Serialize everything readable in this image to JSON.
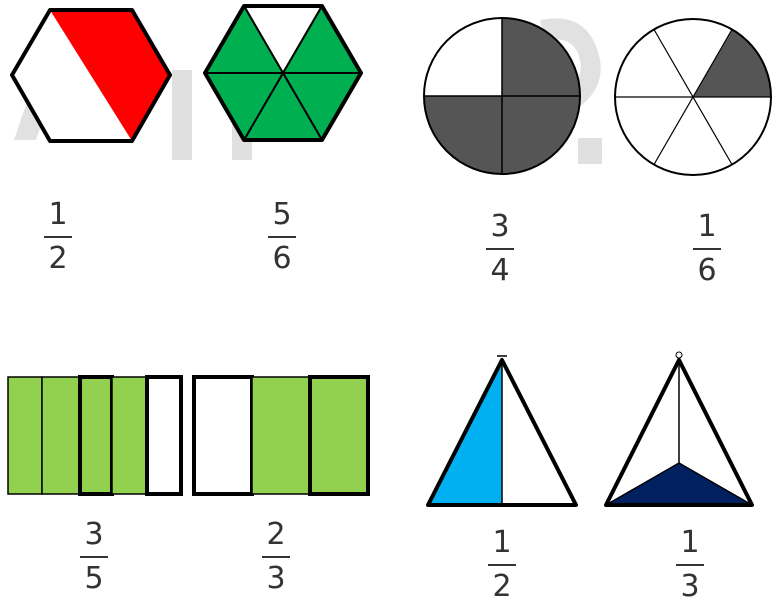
{
  "colors": {
    "red": "#ff0000",
    "green": "#00b050",
    "dark_gray": "#555555",
    "light_green": "#92d050",
    "light_blue": "#00b0f0",
    "navy": "#002060",
    "watermark": "#c8c8c8"
  },
  "figures": [
    {
      "id": "hexagon-half-red",
      "shape": "hexagon",
      "fraction": {
        "numerator": "1",
        "denominator": "2"
      }
    },
    {
      "id": "hexagon-five-sixths-green",
      "shape": "hexagon",
      "fraction": {
        "numerator": "5",
        "denominator": "6"
      }
    },
    {
      "id": "circle-three-quarters-gray",
      "shape": "circle",
      "fraction": {
        "numerator": "3",
        "denominator": "4"
      }
    },
    {
      "id": "circle-one-sixth-gray",
      "shape": "circle",
      "fraction": {
        "numerator": "1",
        "denominator": "6"
      }
    },
    {
      "id": "rectangle-three-fifths-green",
      "shape": "rectangle",
      "fraction": {
        "numerator": "3",
        "denominator": "5"
      }
    },
    {
      "id": "rectangle-two-thirds-green",
      "shape": "rectangle",
      "fraction": {
        "numerator": "2",
        "denominator": "3"
      }
    },
    {
      "id": "triangle-half-blue",
      "shape": "triangle",
      "fraction": {
        "numerator": "1",
        "denominator": "2"
      }
    },
    {
      "id": "triangle-one-third-navy",
      "shape": "triangle",
      "fraction": {
        "numerator": "1",
        "denominator": "3"
      }
    }
  ]
}
